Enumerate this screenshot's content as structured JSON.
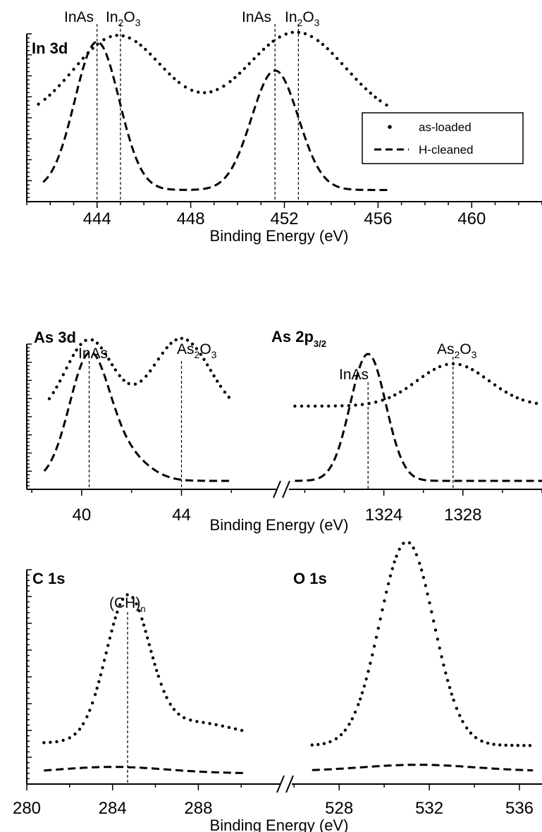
{
  "chart_data": [
    {
      "type": "line",
      "title": "In 3d",
      "xlabel": "Binding Energy (eV)",
      "ylabel": "",
      "xlim": [
        441,
        463
      ],
      "xticks": [
        444,
        448,
        452,
        456,
        460
      ],
      "tick_labels": [
        "444",
        "448",
        "452",
        "456",
        "460"
      ],
      "references": [
        {
          "label": "InAs",
          "x": 444.0
        },
        {
          "label": "In2O3",
          "x": 445.0
        },
        {
          "label": "InAs",
          "x": 451.6
        },
        {
          "label": "In2O3",
          "x": 452.6
        }
      ],
      "legend": {
        "position": "right",
        "entries": [
          "as-loaded",
          "H-cleaned"
        ]
      },
      "series": [
        {
          "name": "as-loaded",
          "style": "dotted",
          "x_range": [
            441.5,
            456.5
          ],
          "peaks": [
            {
              "center": 444.9,
              "height": 0.54,
              "width": 1.9
            },
            {
              "center": 452.5,
              "height": 0.56,
              "width": 2.1
            }
          ],
          "baseline": 0.0,
          "offset": 0.45
        },
        {
          "name": "H-cleaned",
          "style": "dashed",
          "x_range": [
            441.7,
            456.5
          ],
          "peaks": [
            {
              "center": 444.0,
              "height": 0.93,
              "width": 0.95
            },
            {
              "center": 451.6,
              "height": 0.75,
              "width": 1.0
            }
          ],
          "baseline": 0.02,
          "offset": 0.0
        }
      ]
    },
    {
      "type": "line",
      "titles": [
        "As 3d",
        "As 2p3/2"
      ],
      "xlabel": "Binding Energy (eV)",
      "ylabel": "",
      "broken_axis": true,
      "segments": [
        {
          "xlim": [
            37.8,
            47.8
          ],
          "xticks": [
            40,
            44
          ],
          "tick_labels": [
            "40",
            "44"
          ]
        },
        {
          "xlim": [
            1319.2,
            1332.0
          ],
          "xticks": [
            1324,
            1328
          ],
          "tick_labels": [
            "1324",
            "1328"
          ]
        }
      ],
      "references": [
        {
          "label": "InAs",
          "x": 40.3,
          "segment": 0
        },
        {
          "label": "As2O3",
          "x": 44.0,
          "segment": 0
        },
        {
          "label": "InAs",
          "x": 1323.2,
          "segment": 1
        },
        {
          "label": "As2O3",
          "x": 1327.5,
          "segment": 1
        }
      ],
      "series": [
        {
          "name": "as-loaded",
          "style": "dotted",
          "segment": 0,
          "x_range": [
            38.7,
            46.0
          ],
          "peaks": [
            {
              "center": 40.3,
              "height": 0.55,
              "width": 0.95
            },
            {
              "center": 44.0,
              "height": 0.56,
              "width": 1.15
            }
          ],
          "baseline": 0.0,
          "offset": 0.48
        },
        {
          "name": "H-cleaned",
          "style": "dashed",
          "segment": 0,
          "x_range": [
            38.5,
            46.0
          ],
          "peaks": [
            {
              "center": 40.3,
              "height": 0.87,
              "width": 0.8
            },
            {
              "center": 41.8,
              "height": 0.16,
              "width": 0.9
            }
          ],
          "baseline": 0.03,
          "offset": 0.0
        },
        {
          "name": "as-loaded",
          "style": "dotted",
          "segment": 1,
          "x_range": [
            1319.5,
            1332.0
          ],
          "peaks": [
            {
              "center": 1327.5,
              "height": 0.3,
              "width": 1.8
            }
          ],
          "baseline": 0.0,
          "offset": 0.56
        },
        {
          "name": "H-cleaned",
          "style": "dashed",
          "segment": 1,
          "x_range": [
            1319.5,
            1332.0
          ],
          "peaks": [
            {
              "center": 1323.2,
              "height": 0.9,
              "width": 0.9
            }
          ],
          "baseline": 0.03,
          "offset": 0.0
        }
      ]
    },
    {
      "type": "line",
      "titles": [
        "C 1s",
        "O 1s"
      ],
      "xlabel": "Binding Energy  (eV)",
      "ylabel": "",
      "broken_axis": true,
      "segments": [
        {
          "xlim": [
            280,
            291.8
          ],
          "xticks": [
            280,
            284,
            288
          ],
          "tick_labels": [
            "280",
            "284",
            "288"
          ]
        },
        {
          "xlim": [
            525.9,
            537.0
          ],
          "xticks": [
            528,
            532,
            536
          ],
          "tick_labels": [
            "528",
            "532",
            "536"
          ]
        }
      ],
      "references": [
        {
          "label": "(CH)n",
          "x": 284.7,
          "segment": 0
        }
      ],
      "series": [
        {
          "name": "as-loaded",
          "style": "dotted",
          "segment": 0,
          "x_range": [
            280.8,
            290.2
          ],
          "peaks": [
            {
              "center": 284.7,
              "height": 0.64,
              "width": 1.0
            },
            {
              "center": 287.5,
              "height": 0.1,
              "width": 2.5
            }
          ],
          "baseline": 0.02,
          "offset": 0.17
        },
        {
          "name": "H-cleaned",
          "style": "dashed",
          "segment": 0,
          "x_range": [
            280.8,
            290.2
          ],
          "peaks": [
            {
              "center": 284.0,
              "height": 0.03,
              "width": 2.5
            }
          ],
          "baseline": 0.0,
          "offset": 0.05
        },
        {
          "name": "as-loaded",
          "style": "dotted",
          "segment": 1,
          "x_range": [
            526.8,
            536.6
          ],
          "peaks": [
            {
              "center": 531.0,
              "height": 0.95,
              "width": 1.2
            }
          ],
          "baseline": 0.0,
          "offset": 0.18
        },
        {
          "name": "H-cleaned",
          "style": "dashed",
          "segment": 1,
          "x_range": [
            526.8,
            536.6
          ],
          "peaks": [
            {
              "center": 531.5,
              "height": 0.03,
              "width": 2.5
            }
          ],
          "baseline": 0.0,
          "offset": 0.06
        }
      ]
    }
  ]
}
